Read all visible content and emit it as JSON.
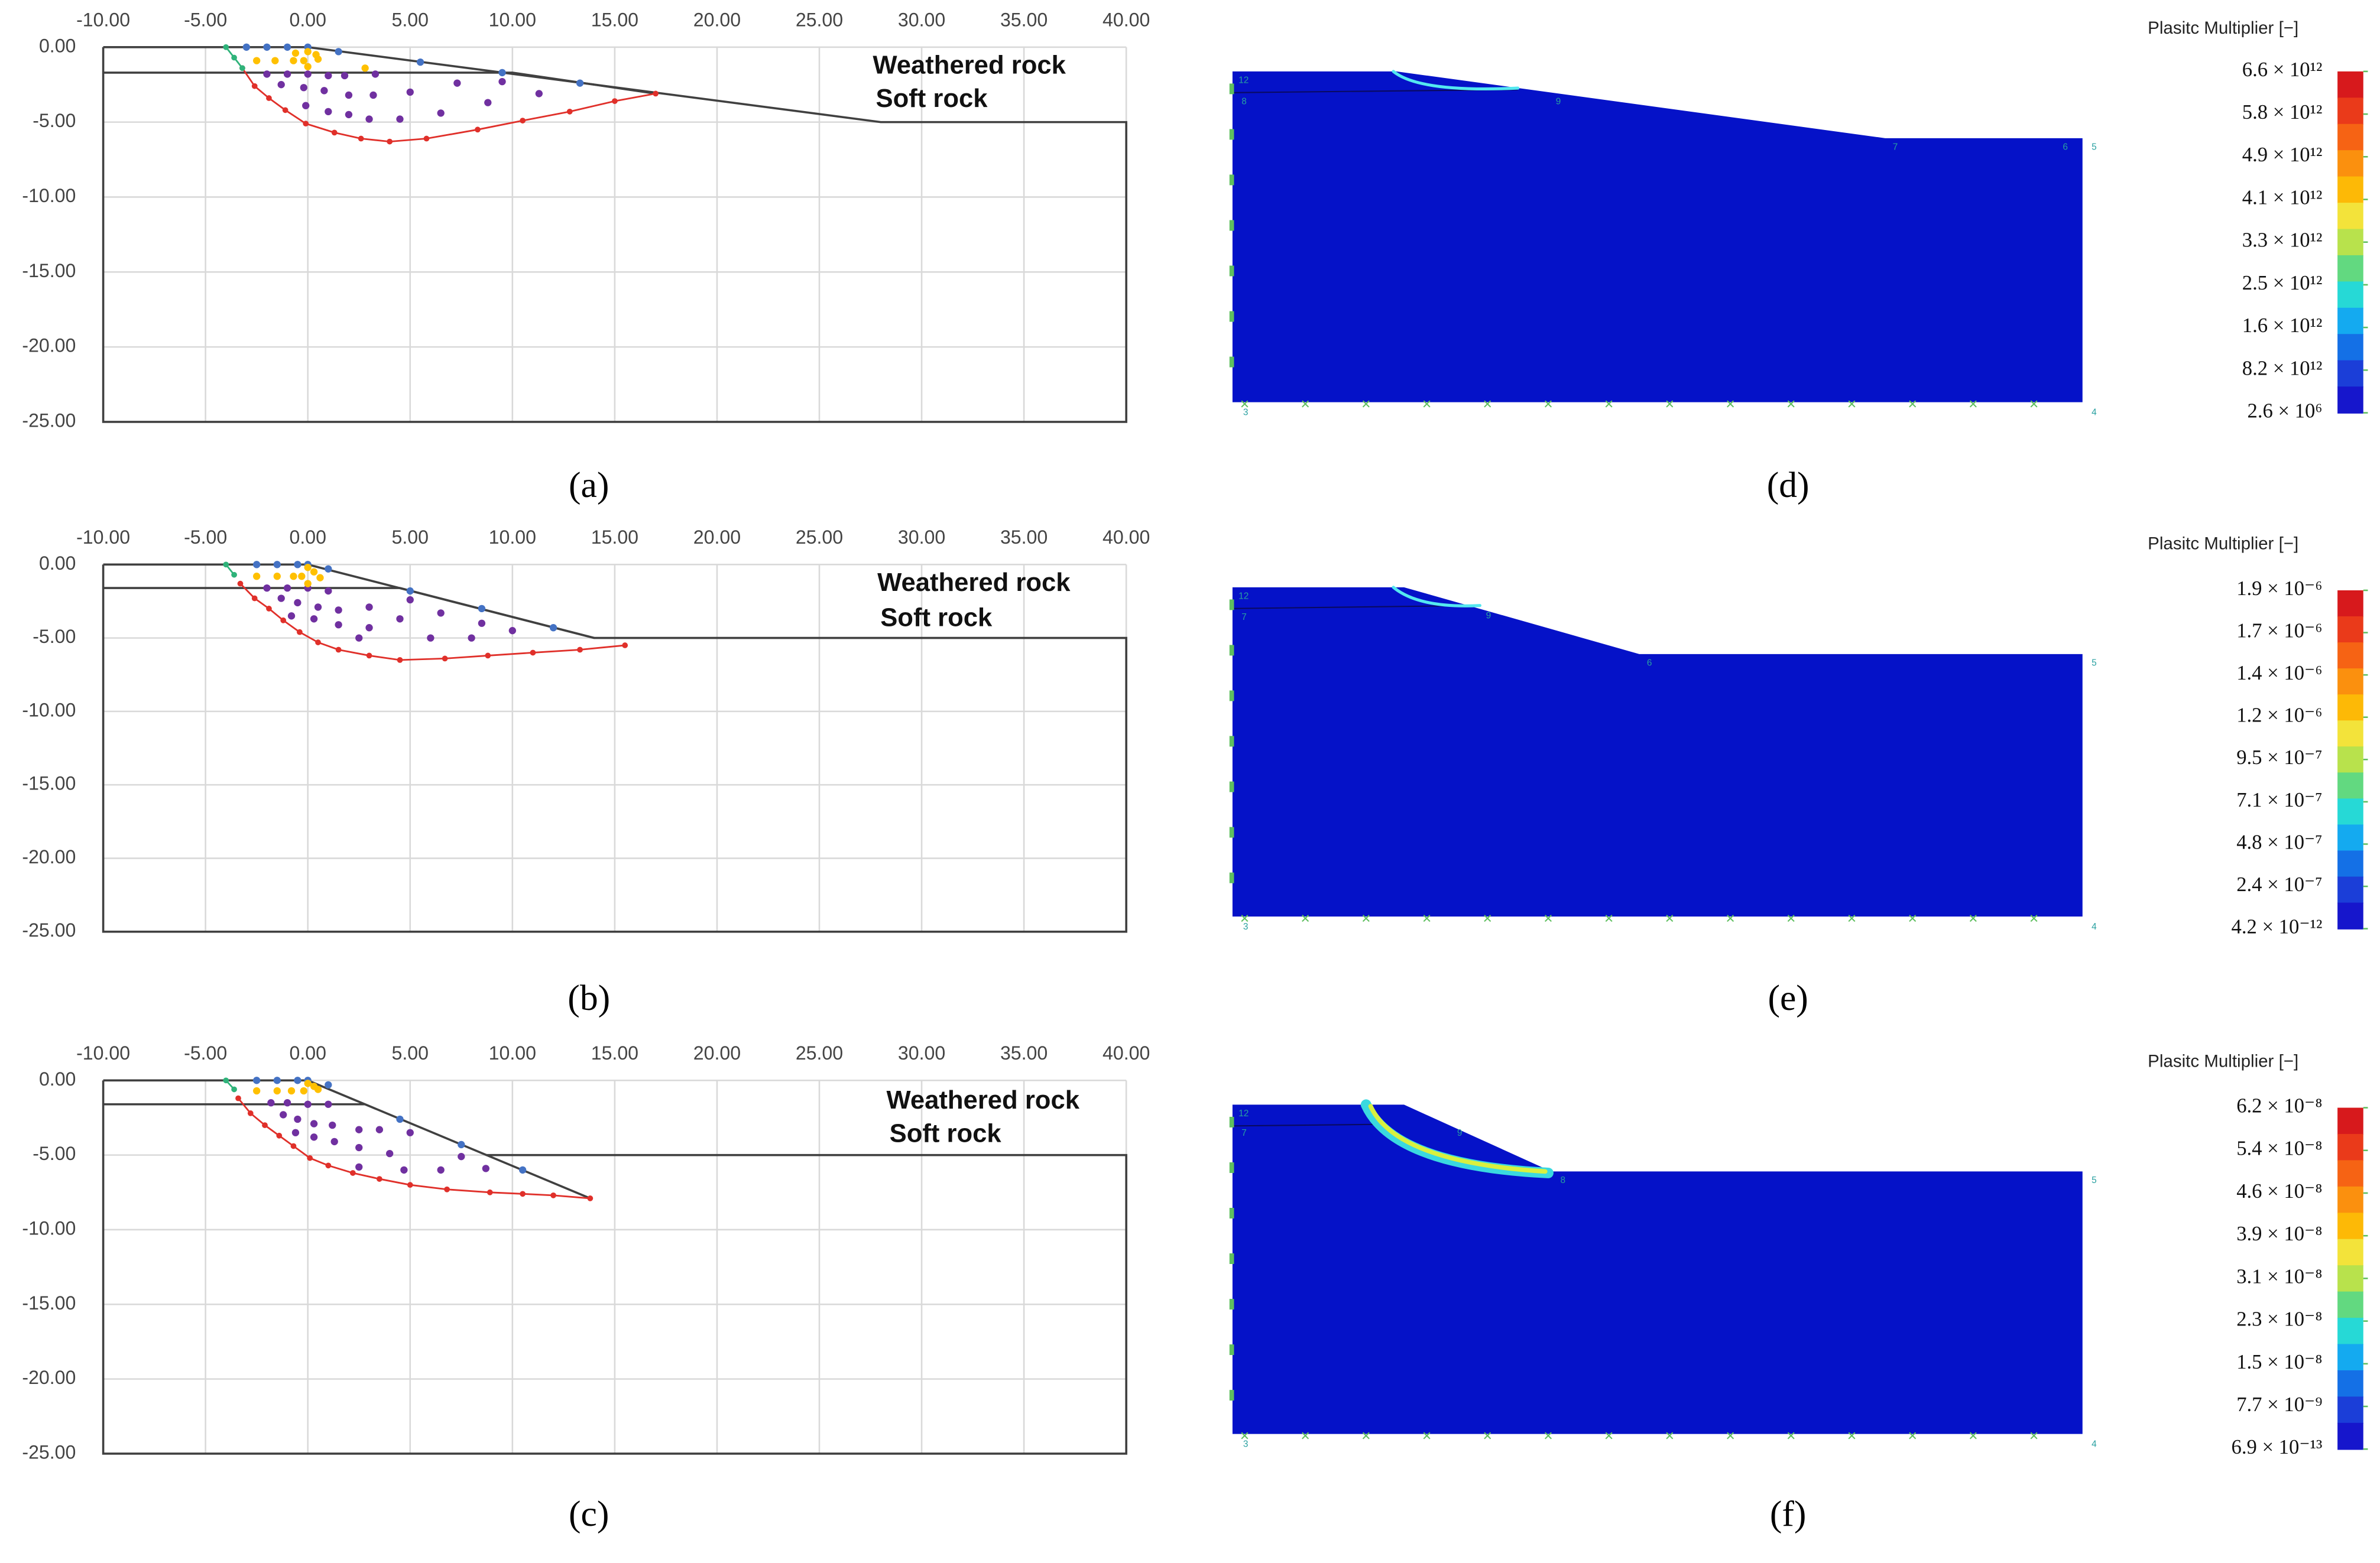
{
  "chart_data": [
    {
      "type": "scatter",
      "panel_label": "(a)",
      "annotations": [
        "Weathered rock",
        "Soft rock"
      ],
      "xlim": [
        -10,
        40
      ],
      "ylim": [
        -25,
        0
      ],
      "xticks": [
        {
          "value": -10,
          "label": "-10.00"
        },
        {
          "value": -5,
          "label": "-5.00"
        },
        {
          "value": 0,
          "label": "0.00"
        },
        {
          "value": 5,
          "label": "5.00"
        },
        {
          "value": 10,
          "label": "10.00"
        },
        {
          "value": 15,
          "label": "15.00"
        },
        {
          "value": 20,
          "label": "20.00"
        },
        {
          "value": 25,
          "label": "25.00"
        },
        {
          "value": 30,
          "label": "30.00"
        },
        {
          "value": 35,
          "label": "35.00"
        },
        {
          "value": 40,
          "label": "40.00"
        }
      ],
      "yticks": [
        {
          "value": 0,
          "label": "0.00"
        },
        {
          "value": -5,
          "label": "-5.00"
        },
        {
          "value": -10,
          "label": "-10.00"
        },
        {
          "value": -15,
          "label": "-15.00"
        },
        {
          "value": -20,
          "label": "-20.00"
        },
        {
          "value": -25,
          "label": "-25.00"
        }
      ],
      "grid": true,
      "series": [
        {
          "color": "#404040",
          "mode": "lines",
          "x": [
            -10,
            0,
            28,
            40,
            40,
            -10,
            -10
          ],
          "y": [
            0,
            0,
            -5,
            -5,
            -25,
            -25,
            0
          ]
        },
        {
          "color": "#404040",
          "mode": "lines",
          "x": [
            -10,
            10,
            17
          ],
          "y": [
            -1.7,
            -1.7,
            -3.1
          ]
        },
        {
          "color": "#e0302a",
          "mode": "lines+markers",
          "x": [
            -3.2,
            -2.6,
            -1.9,
            -1.1,
            -0.1,
            1.3,
            2.6,
            4.0,
            5.8,
            8.3,
            10.5,
            12.8,
            15.0,
            17.0
          ],
          "y": [
            -1.4,
            -2.6,
            -3.4,
            -4.2,
            -5.1,
            -5.7,
            -6.1,
            -6.3,
            -6.1,
            -5.5,
            -4.9,
            -4.3,
            -3.6,
            -3.1
          ]
        },
        {
          "color": "#2fb37a",
          "mode": "lines+markers",
          "x": [
            -4,
            -3.6,
            -3.2
          ],
          "y": [
            0,
            -0.7,
            -1.4
          ]
        },
        {
          "color": "#4472c4",
          "mode": "markers",
          "x": [
            -3,
            -2,
            -1,
            0,
            1.5,
            5.5,
            9.5,
            13.3
          ],
          "y": [
            0,
            0,
            0,
            0,
            -0.3,
            -1,
            -1.7,
            -2.4
          ]
        },
        {
          "color": "#7030a0",
          "mode": "markers",
          "x": [
            -2,
            -1,
            0,
            1,
            1.8,
            3.3,
            -1.3,
            -0.2,
            0.8,
            2,
            3.2,
            5,
            7.3,
            9.5,
            -0.1,
            1,
            2,
            3,
            4.5,
            6.5,
            8.8,
            11.3
          ],
          "y": [
            -1.8,
            -1.8,
            -1.8,
            -1.9,
            -1.9,
            -1.8,
            -2.5,
            -2.7,
            -2.9,
            -3.2,
            -3.2,
            -3,
            -2.4,
            -2.3,
            -3.9,
            -4.3,
            -4.5,
            -4.8,
            -4.8,
            -4.4,
            -3.7,
            -3.1
          ]
        },
        {
          "color": "#ffc000",
          "mode": "markers",
          "x": [
            -2.5,
            -1.6,
            -0.7,
            -0.6,
            0,
            0.4,
            -0.2,
            0.5,
            0,
            2.8
          ],
          "y": [
            -0.9,
            -0.9,
            -0.9,
            -0.4,
            -0.3,
            -0.5,
            -0.9,
            -0.8,
            -1.3,
            -1.4
          ]
        }
      ]
    },
    {
      "type": "scatter",
      "panel_label": "(b)",
      "annotations": [
        "Weathered rock",
        "Soft rock"
      ],
      "xlim": [
        -10,
        40
      ],
      "ylim": [
        -25,
        0
      ],
      "xticks": [
        {
          "value": -10,
          "label": "-10.00"
        },
        {
          "value": -5,
          "label": "-5.00"
        },
        {
          "value": 0,
          "label": "0.00"
        },
        {
          "value": 5,
          "label": "5.00"
        },
        {
          "value": 10,
          "label": "10.00"
        },
        {
          "value": 15,
          "label": "15.00"
        },
        {
          "value": 20,
          "label": "20.00"
        },
        {
          "value": 25,
          "label": "25.00"
        },
        {
          "value": 30,
          "label": "30.00"
        },
        {
          "value": 35,
          "label": "35.00"
        },
        {
          "value": 40,
          "label": "40.00"
        }
      ],
      "yticks": [
        {
          "value": 0,
          "label": "0.00"
        },
        {
          "value": -5,
          "label": "-5.00"
        },
        {
          "value": -10,
          "label": "-10.00"
        },
        {
          "value": -15,
          "label": "-15.00"
        },
        {
          "value": -20,
          "label": "-20.00"
        },
        {
          "value": -25,
          "label": "-25.00"
        }
      ],
      "grid": true,
      "series": [
        {
          "color": "#404040",
          "mode": "lines",
          "x": [
            -10,
            0,
            14,
            40,
            40,
            -10,
            -10
          ],
          "y": [
            0,
            0,
            -5,
            -5,
            -25,
            -25,
            0
          ]
        },
        {
          "color": "#404040",
          "mode": "lines",
          "x": [
            -10,
            4.5,
            14
          ],
          "y": [
            -1.6,
            -1.6,
            -5
          ]
        },
        {
          "color": "#e0302a",
          "mode": "lines+markers",
          "x": [
            -3.3,
            -2.6,
            -1.9,
            -1.2,
            -0.4,
            0.5,
            1.5,
            3,
            4.5,
            6.7,
            8.8,
            11,
            13.3,
            15.5
          ],
          "y": [
            -1.3,
            -2.3,
            -3.0,
            -3.8,
            -4.6,
            -5.3,
            -5.8,
            -6.2,
            -6.5,
            -6.4,
            -6.2,
            -6.0,
            -5.8,
            -5.5
          ]
        },
        {
          "color": "#2fb37a",
          "mode": "lines+markers",
          "x": [
            -4,
            -3.6
          ],
          "y": [
            0,
            -0.7
          ]
        },
        {
          "color": "#4472c4",
          "mode": "markers",
          "x": [
            -2.5,
            -1.5,
            -0.5,
            0,
            1,
            5,
            8.5,
            12
          ],
          "y": [
            0,
            0,
            0,
            0,
            -0.3,
            -1.8,
            -3.0,
            -4.3
          ]
        },
        {
          "color": "#7030a0",
          "mode": "markers",
          "x": [
            -2,
            -1,
            0,
            1,
            -1.3,
            -0.5,
            0.5,
            1.5,
            3,
            5,
            -0.8,
            0.3,
            1.5,
            3,
            4.5,
            6.5,
            8.5,
            10,
            6,
            8,
            2.5
          ],
          "y": [
            -1.6,
            -1.6,
            -1.6,
            -1.8,
            -2.3,
            -2.6,
            -2.9,
            -3.1,
            -2.9,
            -2.4,
            -3.5,
            -3.7,
            -4.1,
            -4.3,
            -3.7,
            -3.3,
            -4,
            -4.5,
            -5.0,
            -5.0,
            -5.0
          ]
        },
        {
          "color": "#ffc000",
          "mode": "markers",
          "x": [
            -2.5,
            -1.5,
            -0.7,
            0,
            0.3,
            -0.3,
            0.6,
            0
          ],
          "y": [
            -0.8,
            -0.8,
            -0.8,
            -0.2,
            -0.5,
            -0.8,
            -0.9,
            -1.3
          ]
        }
      ]
    },
    {
      "type": "scatter",
      "panel_label": "(c)",
      "annotations": [
        "Weathered rock",
        "Soft rock"
      ],
      "xlim": [
        -10,
        40
      ],
      "ylim": [
        -25,
        0
      ],
      "xticks": [
        {
          "value": -10,
          "label": "-10.00"
        },
        {
          "value": -5,
          "label": "-5.00"
        },
        {
          "value": 0,
          "label": "0.00"
        },
        {
          "value": 5,
          "label": "5.00"
        },
        {
          "value": 10,
          "label": "10.00"
        },
        {
          "value": 15,
          "label": "15.00"
        },
        {
          "value": 20,
          "label": "20.00"
        },
        {
          "value": 25,
          "label": "25.00"
        },
        {
          "value": 30,
          "label": "30.00"
        },
        {
          "value": 35,
          "label": "35.00"
        },
        {
          "value": 40,
          "label": "40.00"
        }
      ],
      "yticks": [
        {
          "value": 0,
          "label": "0.00"
        },
        {
          "value": -5,
          "label": "-5.00"
        },
        {
          "value": -10,
          "label": "-10.00"
        },
        {
          "value": -15,
          "label": "-15.00"
        },
        {
          "value": -20,
          "label": "-20.00"
        },
        {
          "value": -25,
          "label": "-25.00"
        }
      ],
      "grid": true,
      "series": [
        {
          "color": "#404040",
          "mode": "lines",
          "x": [
            -10,
            0,
            13.8
          ],
          "y": [
            0,
            0,
            -7.9
          ]
        },
        {
          "color": "#404040",
          "mode": "lines",
          "x": [
            8.7,
            40,
            40,
            -10,
            -10
          ],
          "y": [
            -5,
            -5,
            -25,
            -25,
            0
          ]
        },
        {
          "color": "#404040",
          "mode": "lines",
          "x": [
            -10,
            2.8
          ],
          "y": [
            -1.6,
            -1.6
          ]
        },
        {
          "color": "#e0302a",
          "mode": "lines+markers",
          "x": [
            -3.4,
            -2.8,
            -2.1,
            -1.4,
            -0.7,
            0.1,
            1,
            2.2,
            3.5,
            5,
            6.8,
            8.9,
            10.5,
            12,
            13.8
          ],
          "y": [
            -1.2,
            -2.2,
            -3.0,
            -3.7,
            -4.4,
            -5.2,
            -5.7,
            -6.2,
            -6.6,
            -7.0,
            -7.3,
            -7.5,
            -7.6,
            -7.7,
            -7.9
          ]
        },
        {
          "color": "#2fb37a",
          "mode": "lines+markers",
          "x": [
            -4,
            -3.6
          ],
          "y": [
            0,
            -0.6
          ]
        },
        {
          "color": "#4472c4",
          "mode": "markers",
          "x": [
            -2.5,
            -1.5,
            -0.5,
            0,
            1,
            4.5,
            7.5,
            10.5
          ],
          "y": [
            0,
            0,
            0,
            0,
            -0.3,
            -2.6,
            -4.3,
            -6
          ]
        },
        {
          "color": "#7030a0",
          "mode": "markers",
          "x": [
            -1.8,
            -1,
            0,
            1,
            -1.2,
            -0.5,
            0.3,
            1.2,
            2.5,
            -0.6,
            0.3,
            1.3,
            2.5,
            4,
            3.5,
            5,
            7.5,
            2.5,
            4.7,
            6.5,
            8.7
          ],
          "y": [
            -1.5,
            -1.5,
            -1.6,
            -1.6,
            -2.3,
            -2.6,
            -2.9,
            -3,
            -3.3,
            -3.5,
            -3.8,
            -4.1,
            -4.5,
            -4.9,
            -3.3,
            -3.5,
            -5.1,
            -5.8,
            -6,
            -6,
            -5.9
          ]
        },
        {
          "color": "#ffc000",
          "mode": "markers",
          "x": [
            -2.5,
            -1.5,
            -0.8,
            0,
            0.3,
            -0.2,
            0.5
          ],
          "y": [
            -0.7,
            -0.7,
            -0.7,
            -0.2,
            -0.4,
            -0.7,
            -0.6
          ]
        }
      ]
    },
    {
      "type": "contour",
      "panel_label": "(d)",
      "colorbar_title": "Plasitc Multiplier [−]",
      "colorbar_labels": [
        {
          "value": 6600000000000.0,
          "label": "6.6 × 10¹²"
        },
        {
          "value": 5800000000000.0,
          "label": "5.8 × 10¹²"
        },
        {
          "value": 4900000000000.0,
          "label": "4.9 × 10¹²"
        },
        {
          "value": 4100000000000.0,
          "label": "4.1 × 10¹²"
        },
        {
          "value": 3300000000000.0,
          "label": "3.3 × 10¹²"
        },
        {
          "value": 2500000000000.0,
          "label": "2.5 × 10¹²"
        },
        {
          "value": 1600000000000.0,
          "label": "1.6 × 10¹²"
        },
        {
          "value": 8200000000000.0,
          "label": "8.2 × 10¹²"
        },
        {
          "value": 2600000.0,
          "label": "2.6 × 10⁶"
        }
      ],
      "colors": [
        "#d7191c",
        "#ea3a1a",
        "#f66314",
        "#fb900e",
        "#fdb906",
        "#f3e33a",
        "#b8e24c",
        "#62d980",
        "#26d9d6",
        "#14aaf0",
        "#1470e6",
        "#1b3ed8",
        "#1616cc"
      ],
      "model_color": "#0512c8",
      "node_labels": [
        "12",
        "8",
        "9",
        "7",
        "6",
        "5",
        "3",
        "4"
      ]
    },
    {
      "type": "contour",
      "panel_label": "(e)",
      "colorbar_title": "Plasitc Multiplier [−]",
      "colorbar_labels": [
        {
          "value": 1.9e-06,
          "label": "1.9 × 10⁻⁶"
        },
        {
          "value": 1.7e-06,
          "label": "1.7 × 10⁻⁶"
        },
        {
          "value": 1.4e-06,
          "label": "1.4 × 10⁻⁶"
        },
        {
          "value": 1.2e-06,
          "label": "1.2 × 10⁻⁶"
        },
        {
          "value": 9.5e-07,
          "label": "9.5 × 10⁻⁷"
        },
        {
          "value": 7.1e-07,
          "label": "7.1 × 10⁻⁷"
        },
        {
          "value": 4.8e-07,
          "label": "4.8 × 10⁻⁷"
        },
        {
          "value": 2.4e-07,
          "label": "2.4 × 10⁻⁷"
        },
        {
          "value": 4.2e-12,
          "label": "4.2 × 10⁻¹²"
        }
      ],
      "colors": [
        "#d7191c",
        "#ea3a1a",
        "#f66314",
        "#fb900e",
        "#fdb906",
        "#f3e33a",
        "#b8e24c",
        "#62d980",
        "#26d9d6",
        "#14aaf0",
        "#1470e6",
        "#1b3ed8",
        "#1616cc"
      ],
      "model_color": "#0512c8",
      "node_labels": [
        "12",
        "7",
        "9",
        "6",
        "5",
        "3",
        "4"
      ]
    },
    {
      "type": "contour",
      "panel_label": "(f)",
      "colorbar_title": "Plasitc Multiplier [−]",
      "colorbar_labels": [
        {
          "value": 6.2e-08,
          "label": "6.2 × 10⁻⁸"
        },
        {
          "value": 5.4e-08,
          "label": "5.4 × 10⁻⁸"
        },
        {
          "value": 4.6e-08,
          "label": "4.6 × 10⁻⁸"
        },
        {
          "value": 3.9e-08,
          "label": "3.9 × 10⁻⁸"
        },
        {
          "value": 3.1e-08,
          "label": "3.1 × 10⁻⁸"
        },
        {
          "value": 2.3e-08,
          "label": "2.3 × 10⁻⁸"
        },
        {
          "value": 1.5e-08,
          "label": "1.5 × 10⁻⁸"
        },
        {
          "value": 7.7e-09,
          "label": "7.7 × 10⁻⁹"
        },
        {
          "value": 6.9e-13,
          "label": "6.9 × 10⁻¹³"
        }
      ],
      "colors": [
        "#d7191c",
        "#ea3a1a",
        "#f66314",
        "#fb900e",
        "#fdb906",
        "#f3e33a",
        "#b8e24c",
        "#62d980",
        "#26d9d6",
        "#14aaf0",
        "#1470e6",
        "#1b3ed8",
        "#1616cc"
      ],
      "model_color": "#0512c8",
      "node_labels": [
        "12",
        "7",
        "9",
        "8",
        "5",
        "3",
        "4"
      ]
    }
  ]
}
